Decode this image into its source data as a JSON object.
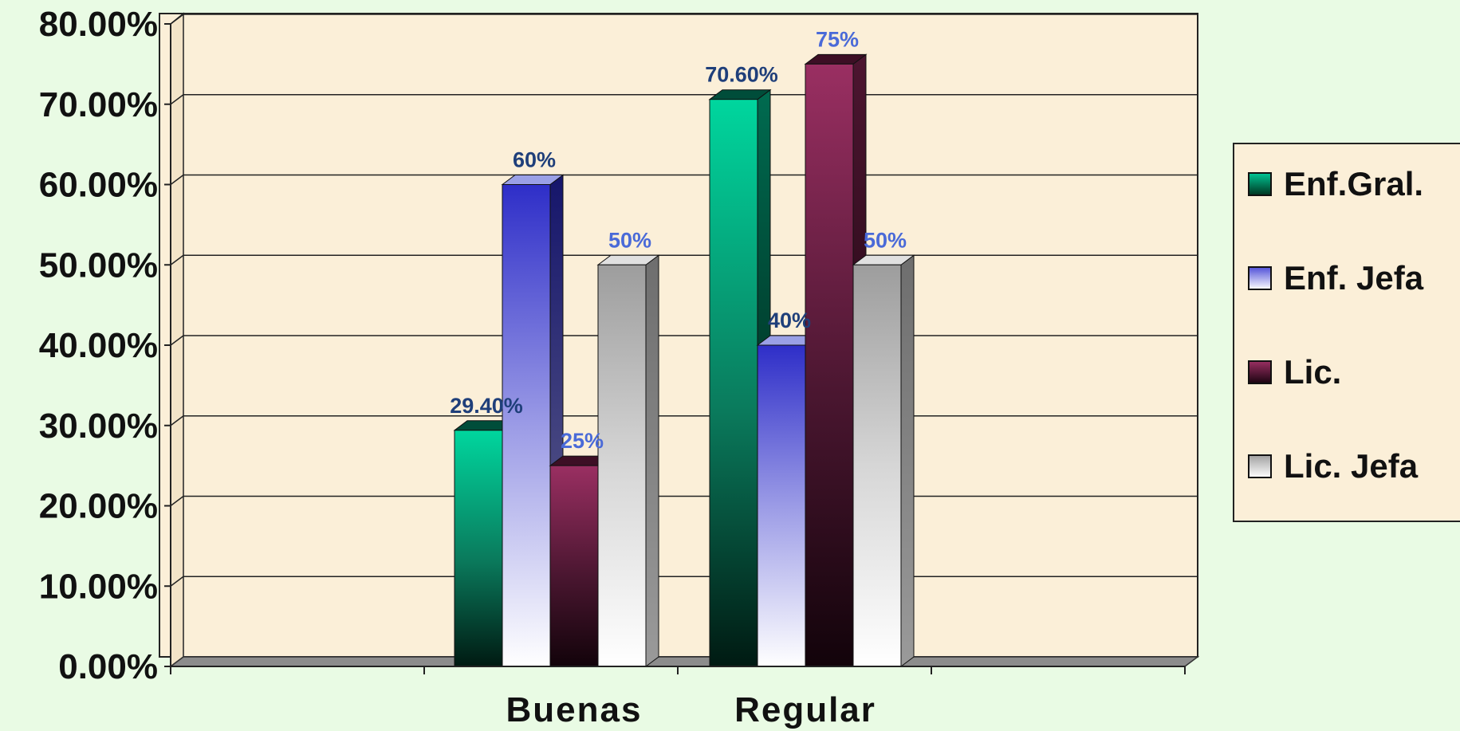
{
  "chart_data": {
    "type": "bar",
    "categories": [
      "Buenas",
      "Regular"
    ],
    "series": [
      {
        "name": "Enf.Gral.",
        "values": [
          29.4,
          70.6
        ],
        "labels": [
          "29.40%",
          "70.60%"
        ]
      },
      {
        "name": "Enf. Jefa",
        "values": [
          60,
          40
        ],
        "labels": [
          "60%",
          "40%"
        ]
      },
      {
        "name": "Lic.",
        "values": [
          25,
          75
        ],
        "labels": [
          "25%",
          "75%"
        ]
      },
      {
        "name": "Lic. Jefa",
        "values": [
          50,
          50
        ],
        "labels": [
          "50%",
          "50%"
        ]
      }
    ],
    "ylim": [
      0,
      80
    ],
    "yticks": [
      "0.00%",
      "10.00%",
      "20.00%",
      "30.00%",
      "40.00%",
      "50.00%",
      "60.00%",
      "70.00%",
      "80.00%"
    ],
    "grid": true,
    "legend": "right",
    "colors": {
      "series": [
        "#00c896",
        "#3b3bd0",
        "#8a2a55",
        "#a9a9a9"
      ],
      "plot_background": "#fbefd8",
      "page_background": "#e9fbe4",
      "label_dark": "#1f3f7a",
      "label_light": "#4a6ad8"
    }
  }
}
